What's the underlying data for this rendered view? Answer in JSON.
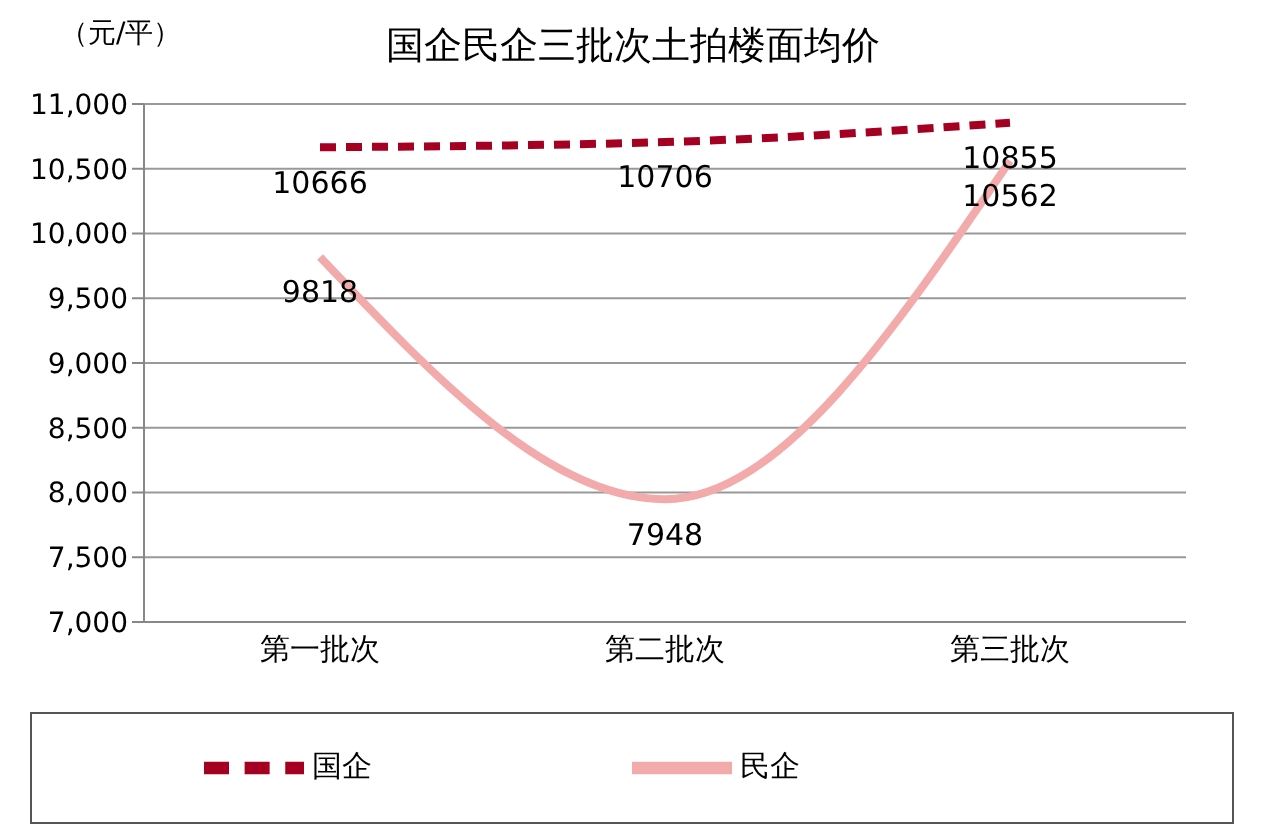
{
  "chart_data": {
    "type": "line",
    "title": "国企民企三批次土拍楼面均价",
    "ylabel": "（元/平）",
    "categories": [
      "第一批次",
      "第二批次",
      "第三批次"
    ],
    "series": [
      {
        "name": "国企",
        "color": "#a50021",
        "values": [
          10666,
          10706,
          10855
        ],
        "line_style": "dashed"
      },
      {
        "name": "民企",
        "color": "#f2aaaa",
        "values": [
          9818,
          7948,
          10562
        ],
        "line_style": "solid"
      }
    ],
    "ylim": [
      7000,
      11000
    ],
    "yticks": [
      {
        "value": 7000,
        "label": "7,000"
      },
      {
        "value": 7500,
        "label": "7,500"
      },
      {
        "value": 8000,
        "label": "8,000"
      },
      {
        "value": 8500,
        "label": "8,500"
      },
      {
        "value": 9000,
        "label": "9,000"
      },
      {
        "value": 9500,
        "label": "9,500"
      },
      {
        "value": 10000,
        "label": "10,000"
      },
      {
        "value": 10500,
        "label": "10,500"
      },
      {
        "value": 11000,
        "label": "11,000"
      }
    ],
    "grid": "y",
    "legend": "bottom",
    "data_labels": true,
    "marker": "none"
  }
}
